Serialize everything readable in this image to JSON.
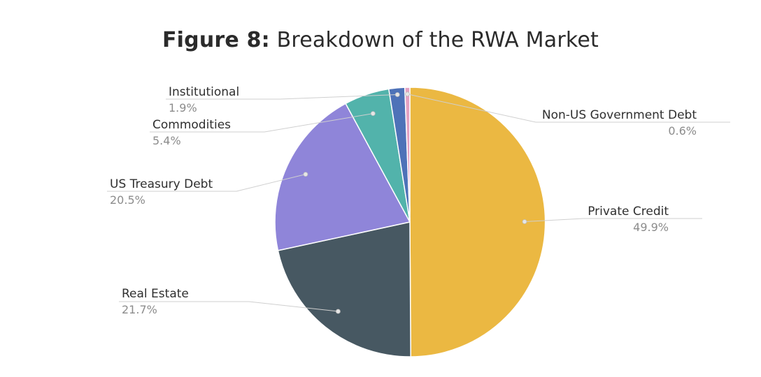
{
  "chart_data": {
    "type": "pie",
    "title_prefix": "Figure 8:",
    "title": "Breakdown of the RWA Market",
    "value_suffix": "%",
    "slices": [
      {
        "label": "Private Credit",
        "value": 49.9,
        "color": "#EBB842"
      },
      {
        "label": "Real Estate",
        "value": 21.7,
        "color": "#475862"
      },
      {
        "label": "US Treasury Debt",
        "value": 20.5,
        "color": "#8F85D9"
      },
      {
        "label": "Commodities",
        "value": 5.4,
        "color": "#52B3AB"
      },
      {
        "label": "Institutional",
        "value": 1.9,
        "color": "#4E72B8"
      },
      {
        "label": "Non-US Government Debt",
        "value": 0.6,
        "color": "#E3A1C2"
      }
    ],
    "legend": "none"
  }
}
